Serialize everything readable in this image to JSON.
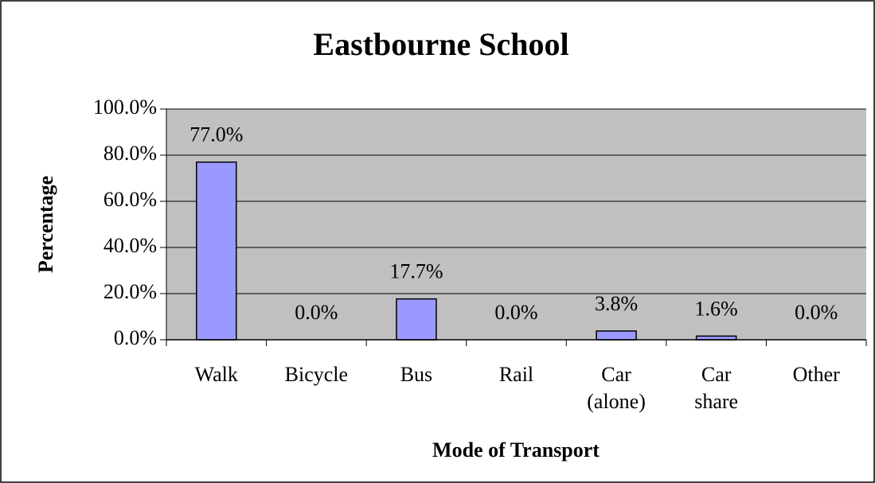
{
  "chart_data": {
    "type": "bar",
    "title": "Eastbourne School",
    "x_label": "Mode of Transport",
    "y_label": "Percentage",
    "categories": [
      "Walk",
      "Bicycle",
      "Bus",
      "Rail",
      "Car (alone)",
      "Car share",
      "Other"
    ],
    "values": [
      77.0,
      0.0,
      17.7,
      0.0,
      3.8,
      1.6,
      0.0
    ],
    "value_labels": [
      "77.0%",
      "0.0%",
      "17.7%",
      "0.0%",
      "3.8%",
      "1.6%",
      "0.0%"
    ],
    "color": "#9999ff",
    "ylim": [
      0,
      100
    ],
    "yticks": [
      {
        "value": 0,
        "label": "0.0%"
      },
      {
        "value": 20,
        "label": "20.0%"
      },
      {
        "value": 40,
        "label": "40.0%"
      },
      {
        "value": 60,
        "label": "60.0%"
      },
      {
        "value": 80,
        "label": "80.0%"
      },
      {
        "value": 100,
        "label": "100.0%"
      }
    ],
    "grid": true
  }
}
